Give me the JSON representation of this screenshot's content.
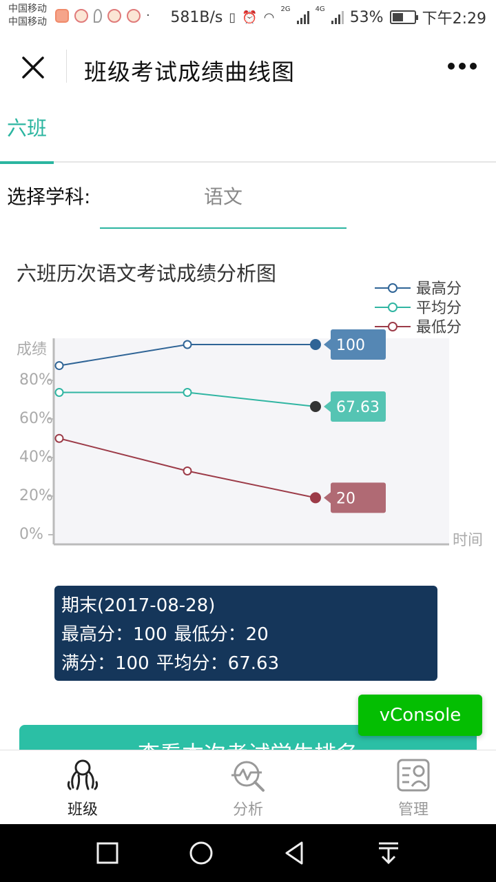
{
  "status_bar": {
    "carrier_1": "中国移动",
    "carrier_2": "中国移动",
    "net_speed": "581B/s",
    "net_gen_1": "2G",
    "net_gen_2": "4G",
    "battery": "53%",
    "battery_level": 0.53,
    "time": "下午2:29"
  },
  "title_bar": {
    "title": "班级考试成绩曲线图"
  },
  "tabs": [
    {
      "label": "六班",
      "active": true
    }
  ],
  "subject": {
    "label": "选择学科:",
    "value": "语文"
  },
  "chart_data": {
    "type": "line",
    "title": "六班历次语文考试成绩分析图",
    "xlabel": "时间",
    "ylabel": "成绩",
    "y_ticks": [
      "0%",
      "20%",
      "40%",
      "60%",
      "80%"
    ],
    "ylim": [
      0,
      100
    ],
    "x_count": 3,
    "selected_index": 2,
    "legend_position": "top-right",
    "series": [
      {
        "name": "最高分",
        "color": "#2f6496",
        "values": [
          89,
          100,
          100
        ],
        "end_label": "100",
        "end_label_color": "#5587b4"
      },
      {
        "name": "平均分",
        "color": "#30b5a2",
        "values": [
          75,
          75,
          67.63
        ],
        "end_label": "67.63",
        "end_label_color": "#55c4b3"
      },
      {
        "name": "最低分",
        "color": "#9c3b48",
        "values": [
          51,
          34,
          20
        ],
        "end_label": "20",
        "end_label_color": "#b06a74"
      }
    ]
  },
  "tooltip": {
    "heading": "期末(2017-08-28)",
    "max_label": "最高分：",
    "max_value": "100",
    "min_label": "最低分：",
    "min_value": "20",
    "full_label": "满分：",
    "full_value": "100",
    "avg_label": "平均分：",
    "avg_value": "67.63"
  },
  "vconsole_label": "vConsole",
  "rank_button_label": "查看本次考试学生排名",
  "bottom_nav": [
    {
      "label": "班级",
      "icon": "class-icon",
      "active": true
    },
    {
      "label": "分析",
      "icon": "analysis-icon",
      "active": false
    },
    {
      "label": "管理",
      "icon": "manage-icon",
      "active": false
    }
  ],
  "colors": {
    "accent": "#2bb5a0",
    "tooltip_bg": "#15365a",
    "vconsole": "#04be02"
  }
}
